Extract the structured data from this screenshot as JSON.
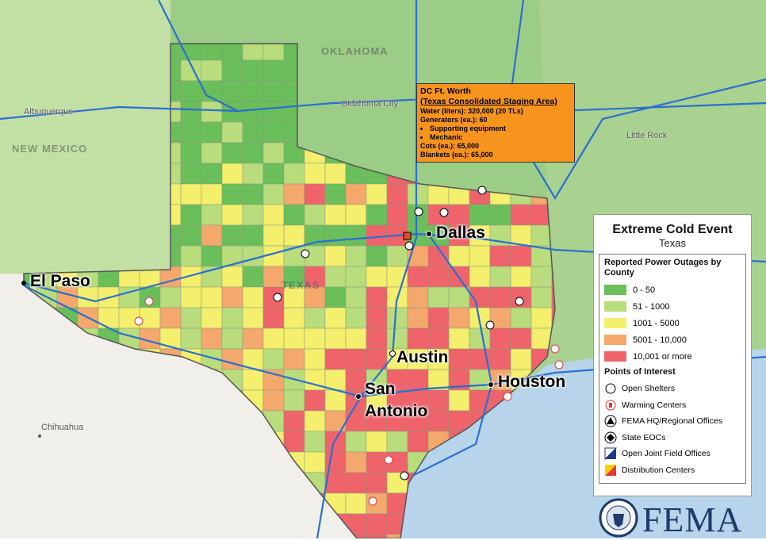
{
  "map": {
    "cities": [
      "El Paso",
      "Dallas",
      "Austin",
      "Houston"
    ],
    "san_antonio": [
      "San",
      "Antonio"
    ],
    "regions": [
      "NEW MEXICO",
      "OKLAHOMA",
      "TEXAS"
    ],
    "minor_labels": [
      "Chihuahua",
      "Albuquerque",
      "Oklahoma City",
      "Little Rock"
    ]
  },
  "callout": {
    "title": "DC Ft. Worth",
    "subtitle": "(Texas Consolidated Staging Area)",
    "lines_before": [
      "Water (liters): 320,000 (20 TLs)",
      "Generators (ea.): 60"
    ],
    "bullets": [
      "Supporting equipment",
      "Mechanic"
    ],
    "lines_after": [
      "Cots (ea.): 65,000",
      "Blankets (ea.): 65,000"
    ]
  },
  "legend": {
    "title": "Extreme Cold Event",
    "subtitle": "Texas",
    "outages_title": "Reported Power Outages by County",
    "classes": [
      {
        "label": "0 - 50",
        "color": "#6abf5a"
      },
      {
        "label": "51 - 1000",
        "color": "#b9dc7c"
      },
      {
        "label": "1001 - 5000",
        "color": "#f4ef6c"
      },
      {
        "label": "5001 - 10,000",
        "color": "#f5a86c"
      },
      {
        "label": "10,001 or more",
        "color": "#ef636b"
      }
    ],
    "poi_title": "Points of Interest",
    "poi": [
      "Open Shelters",
      "Warming Centers",
      "FEMA HQ/Regional Offices",
      "State EOCs",
      "Open Joint Field Offices",
      "Distribution Centers"
    ]
  },
  "logo": "FEMA"
}
